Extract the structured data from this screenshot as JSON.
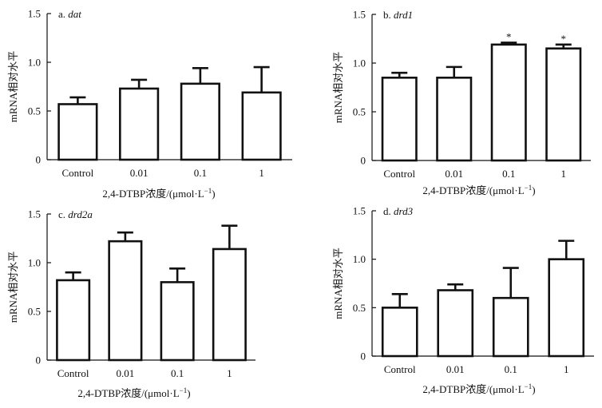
{
  "chart_data": [
    {
      "type": "bar",
      "panel_letter": "a.",
      "gene": "dat",
      "ylabel": "mRNA相对水平",
      "xlabel_prefix": "2,4-DTBP浓度/(μmol·L",
      "xlabel_exp": "−1",
      "xlabel_suffix": ")",
      "categories": [
        "Control",
        "0.01",
        "0.1",
        "1"
      ],
      "values": [
        0.57,
        0.73,
        0.78,
        0.69
      ],
      "errors": [
        0.07,
        0.09,
        0.16,
        0.26
      ],
      "significance": [
        "",
        "",
        "",
        ""
      ],
      "ylim": [
        0,
        1.5
      ],
      "yticks": [
        "0",
        "0.5",
        "1.0",
        "1.5"
      ]
    },
    {
      "type": "bar",
      "panel_letter": "b.",
      "gene": "drd1",
      "ylabel": "mRNA相对水平",
      "xlabel_prefix": "2,4-DTBP浓度/(μmol·L",
      "xlabel_exp": "−1",
      "xlabel_suffix": ")",
      "categories": [
        "Control",
        "0.01",
        "0.1",
        "1"
      ],
      "values": [
        0.85,
        0.85,
        1.19,
        1.15
      ],
      "errors": [
        0.05,
        0.11,
        0.02,
        0.04
      ],
      "significance": [
        "",
        "",
        "*",
        "*"
      ],
      "ylim": [
        0,
        1.5
      ],
      "yticks": [
        "0",
        "0.5",
        "1.0",
        "1.5"
      ]
    },
    {
      "type": "bar",
      "panel_letter": "c.",
      "gene": "drd2a",
      "ylabel": "mRNA相对水平",
      "xlabel_prefix": "2,4-DTBP浓度/(μmol·L",
      "xlabel_exp": "−1",
      "xlabel_suffix": ")",
      "categories": [
        "Control",
        "0.01",
        "0.1",
        "1"
      ],
      "values": [
        0.82,
        1.22,
        0.8,
        1.14
      ],
      "errors": [
        0.08,
        0.09,
        0.14,
        0.24
      ],
      "significance": [
        "",
        "",
        "",
        ""
      ],
      "ylim": [
        0,
        1.5
      ],
      "yticks": [
        "0",
        "0.5",
        "1.0",
        "1.5"
      ]
    },
    {
      "type": "bar",
      "panel_letter": "d.",
      "gene": "drd3",
      "ylabel": "mRNA相对水平",
      "xlabel_prefix": "2,4-DTBP浓度/(μmol·L",
      "xlabel_exp": "−1",
      "xlabel_suffix": ")",
      "categories": [
        "Control",
        "0.01",
        "0.1",
        "1"
      ],
      "values": [
        0.5,
        0.68,
        0.6,
        1.0
      ],
      "errors": [
        0.14,
        0.06,
        0.31,
        0.19
      ],
      "significance": [
        "",
        "",
        "",
        ""
      ],
      "ylim": [
        0,
        1.5
      ],
      "yticks": [
        "0",
        "0.5",
        "1.0",
        "1.5"
      ]
    }
  ]
}
